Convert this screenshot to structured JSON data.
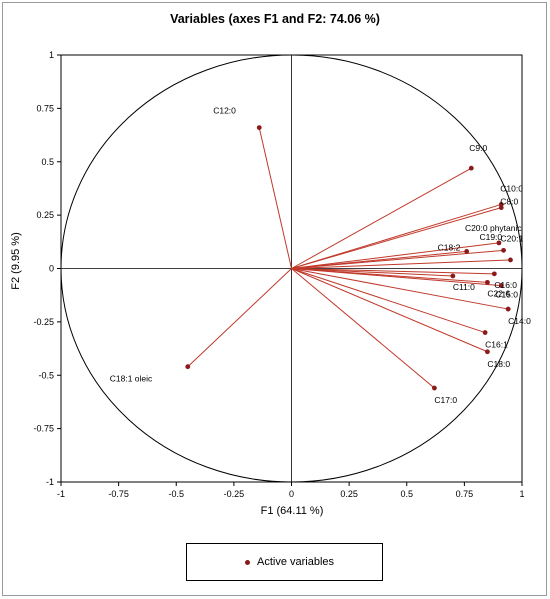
{
  "chart_data": {
    "type": "scatter",
    "title": "Variables (axes F1 and F2: 74.06 %)",
    "xlabel": "F1 (64.11 %)",
    "ylabel": "F2 (9.95 %)",
    "xlim": [
      -1,
      1
    ],
    "ylim": [
      -1,
      1
    ],
    "xticks": [
      "-1",
      "-0.75",
      "-0.5",
      "-0.25",
      "0",
      "0.25",
      "0.5",
      "0.75",
      "1"
    ],
    "yticks": [
      "-1",
      "-0.75",
      "-0.5",
      "-0.25",
      "0",
      "0.25",
      "0.5",
      "0.75",
      "1"
    ],
    "correlation_circle": true,
    "vectors_from_origin": true,
    "legend": {
      "position": "bottom",
      "label": "Active variables"
    },
    "colors": {
      "points": "#8b1a1a",
      "vectors": "#c0392b",
      "circle": "#000000"
    },
    "points": [
      {
        "label": "C12:0",
        "x": -0.14,
        "y": 0.66
      },
      {
        "label": "C9:0",
        "x": 0.78,
        "y": 0.47
      },
      {
        "label": "C10:0",
        "x": 0.91,
        "y": 0.3
      },
      {
        "label": "C8:0",
        "x": 0.91,
        "y": 0.285
      },
      {
        "label": "C20:1",
        "x": 0.92,
        "y": 0.085
      },
      {
        "label": "C20:0 phytanic",
        "x": 0.9,
        "y": 0.12
      },
      {
        "label": "C18:2",
        "x": 0.76,
        "y": 0.08
      },
      {
        "label": "C19:0",
        "x": 0.95,
        "y": 0.04
      },
      {
        "label": "C11:0",
        "x": 0.7,
        "y": -0.035
      },
      {
        "label": "C16:0",
        "x": 0.88,
        "y": -0.025
      },
      {
        "label": "C22:6",
        "x": 0.85,
        "y": -0.065
      },
      {
        "label": "C15:0",
        "x": 0.91,
        "y": -0.08
      },
      {
        "label": "C14:0",
        "x": 0.94,
        "y": -0.19
      },
      {
        "label": "C16:1",
        "x": 0.84,
        "y": -0.3
      },
      {
        "label": "C18:0",
        "x": 0.85,
        "y": -0.39
      },
      {
        "label": "C17:0",
        "x": 0.62,
        "y": -0.56
      },
      {
        "label": "C18:1 oleic",
        "x": -0.45,
        "y": -0.46
      }
    ]
  }
}
